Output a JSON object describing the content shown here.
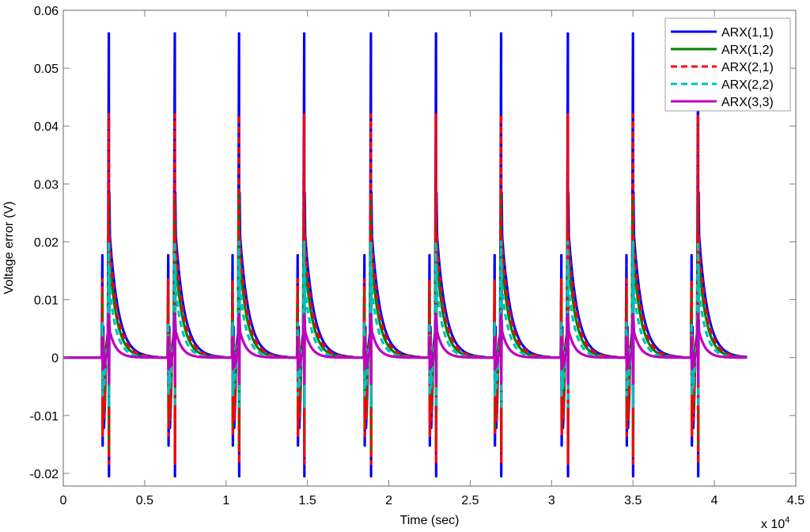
{
  "chart_data": {
    "type": "line",
    "title": "",
    "xlabel": "Time (sec)",
    "ylabel": "Voltage error (V)",
    "x_multiplier_label": "x 10",
    "x_multiplier_exponent": "4",
    "xlim": [
      0,
      4.5
    ],
    "ylim": [
      -0.0222,
      0.06
    ],
    "x_ticks": [
      0,
      0.5,
      1,
      1.5,
      2,
      2.5,
      3,
      3.5,
      4,
      4.5
    ],
    "x_tick_labels": [
      "0",
      "0.5",
      "1",
      "1.5",
      "2",
      "2.5",
      "3",
      "3.5",
      "4",
      "4.5"
    ],
    "y_ticks": [
      -0.02,
      -0.01,
      0,
      0.01,
      0.02,
      0.03,
      0.04,
      0.05,
      0.06
    ],
    "y_tick_labels": [
      "-0.02",
      "-0.01",
      "0",
      "0.01",
      "0.02",
      "0.03",
      "0.04",
      "0.05",
      "0.06"
    ],
    "grid": false,
    "legend_position": "upper right",
    "x_end": 4.2,
    "pulse_times": [
      0.28,
      0.685,
      1.08,
      1.48,
      1.89,
      2.29,
      2.69,
      3.1,
      3.5,
      3.9
    ],
    "pre_spike_offset": 0.04,
    "series": [
      {
        "name": "ARX(1,1)",
        "color": "#0000ff",
        "dash": "",
        "width": 3.2,
        "peak": 0.056,
        "knee": 0.0285,
        "decay_start": 0.021,
        "pre_spike_high": 0.0177,
        "pre_spike_low": -0.0152,
        "trough": -0.0205,
        "tau": 0.055
      },
      {
        "name": "ARX(1,2)",
        "color": "#008000",
        "dash": "",
        "width": 3.2,
        "peak": 0.028,
        "knee": 0.02,
        "decay_start": 0.0165,
        "pre_spike_high": 0.012,
        "pre_spike_low": -0.012,
        "trough": -0.016,
        "tau": 0.048
      },
      {
        "name": "ARX(2,1)",
        "color": "#ff0000",
        "dash": "8,5",
        "width": 3.2,
        "peak": 0.042,
        "knee": 0.021,
        "decay_start": 0.019,
        "pre_spike_high": 0.0135,
        "pre_spike_low": -0.0135,
        "trough": -0.0183,
        "tau": 0.052
      },
      {
        "name": "ARX(2,2)",
        "color": "#00bfbf",
        "dash": "8,5",
        "width": 3.2,
        "peak": 0.02,
        "knee": 0.016,
        "decay_start": 0.0115,
        "pre_spike_high": 0.006,
        "pre_spike_low": -0.0065,
        "trough": -0.0085,
        "tau": 0.045
      },
      {
        "name": "ARX(3,3)",
        "color": "#bf00bf",
        "dash": "",
        "width": 3.2,
        "peak": 0.0075,
        "knee": 0.0065,
        "decay_start": 0.0045,
        "pre_spike_high": 0.0035,
        "pre_spike_low": -0.002,
        "trough": -0.0045,
        "tau": 0.04
      }
    ]
  },
  "legend": {
    "items": [
      {
        "label": "ARX(1,1)"
      },
      {
        "label": "ARX(1,2)"
      },
      {
        "label": "ARX(2,1)"
      },
      {
        "label": "ARX(2,2)"
      },
      {
        "label": "ARX(3,3)"
      }
    ]
  }
}
